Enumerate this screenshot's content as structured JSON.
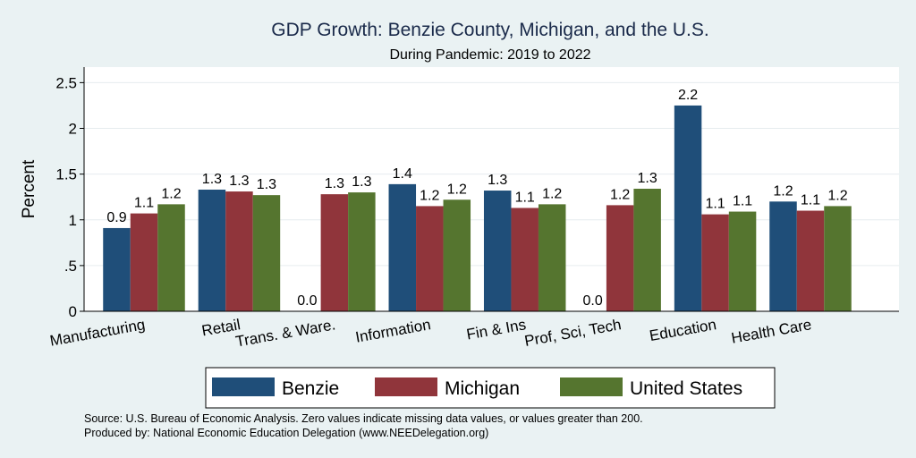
{
  "chart_data": {
    "type": "bar",
    "title": "GDP Growth: Benzie County, Michigan, and the U.S.",
    "subtitle": "During Pandemic: 2019 to 2022",
    "ylabel": "Percent",
    "xlabel": "",
    "ylim": [
      0,
      2.67
    ],
    "yticks": [
      0,
      0.5,
      1,
      1.5,
      2,
      2.5
    ],
    "ytick_labels": [
      "0",
      ".5",
      "1",
      "1.5",
      "2",
      "2.5"
    ],
    "grid": true,
    "legend_position": "bottom",
    "categories": [
      "Manufacturing",
      "Retail",
      "Trans. & Ware.",
      "Information",
      "Fin & Ins",
      "Prof, Sci, Tech",
      "Education",
      "Health Care"
    ],
    "series": [
      {
        "name": "Benzie",
        "color": "#1f4e79",
        "values": [
          0.91,
          1.33,
          0.0,
          1.39,
          1.32,
          0.0,
          2.25,
          1.2
        ],
        "labels": [
          "0.9",
          "1.3",
          "0.0",
          "1.4",
          "1.3",
          "0.0",
          "2.2",
          "1.2"
        ]
      },
      {
        "name": "Michigan",
        "color": "#90353b",
        "values": [
          1.07,
          1.31,
          1.28,
          1.15,
          1.13,
          1.16,
          1.06,
          1.1
        ],
        "labels": [
          "1.1",
          "1.3",
          "1.3",
          "1.2",
          "1.1",
          "1.2",
          "1.1",
          "1.1"
        ]
      },
      {
        "name": "United States",
        "color": "#55752f",
        "values": [
          1.17,
          1.27,
          1.3,
          1.22,
          1.17,
          1.34,
          1.09,
          1.15
        ],
        "labels": [
          "1.2",
          "1.3",
          "1.3",
          "1.2",
          "1.2",
          "1.3",
          "1.1",
          "1.2"
        ]
      }
    ],
    "footnote": [
      "Source: U.S. Bureau of Economic Analysis. Zero values indicate missing data values, or values greater than 200.",
      "Produced by: National Economic Education Delegation (www.NEEDelegation.org)"
    ]
  },
  "colors": {
    "background": "#eaf2f3",
    "plot_background": "#ffffff",
    "grid": "#e6ecef"
  }
}
